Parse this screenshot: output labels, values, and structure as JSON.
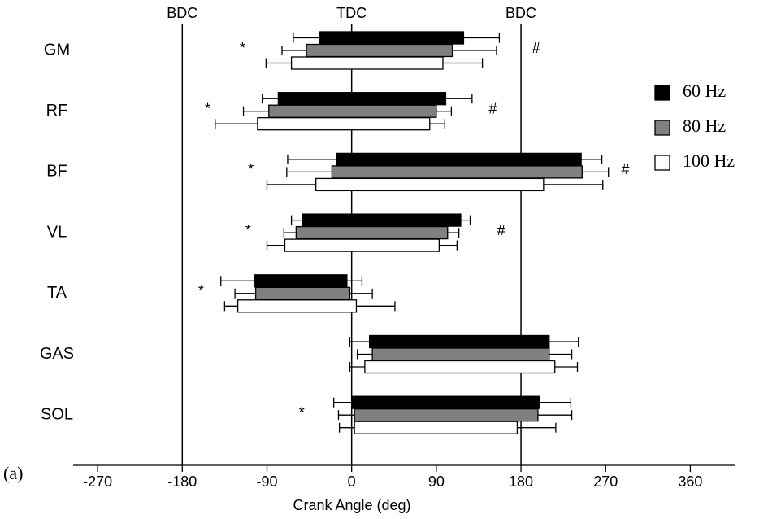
{
  "chart_data": {
    "type": "floating-bar",
    "categories": [
      "GM",
      "RF",
      "BF",
      "VL",
      "TA",
      "GAS",
      "SOL"
    ],
    "series": [
      {
        "name": "60 Hz",
        "color": "#000000",
        "onset": [
          -34,
          -78,
          -16,
          -52,
          -103,
          19,
          0
        ],
        "offset": [
          119,
          100,
          244,
          116,
          -5,
          210,
          200
        ],
        "onset_error": [
          28,
          17,
          52,
          12,
          36,
          21,
          19
        ],
        "offset_error": [
          38,
          28,
          22,
          10,
          16,
          31,
          33
        ]
      },
      {
        "name": "80 Hz",
        "color": "#808080",
        "onset": [
          -48,
          -88,
          -21,
          -59,
          -102,
          22,
          3
        ],
        "offset": [
          107,
          90,
          245,
          102,
          -2,
          210,
          198
        ],
        "onset_error": [
          26,
          27,
          48,
          13,
          22,
          16,
          17
        ],
        "offset_error": [
          47,
          16,
          28,
          12,
          24,
          24,
          36
        ]
      },
      {
        "name": "100 Hz",
        "color": "#ffffff",
        "onset": [
          -64,
          -100,
          -38,
          -71,
          -121,
          14,
          3
        ],
        "offset": [
          97,
          83,
          204,
          93,
          5,
          216,
          176
        ],
        "onset_error": [
          27,
          45,
          52,
          19,
          14,
          16,
          16
        ],
        "offset_error": [
          42,
          16,
          63,
          19,
          41,
          24,
          41
        ]
      }
    ],
    "annotations": [
      {
        "category": 0,
        "x": -116,
        "text": "*"
      },
      {
        "category": 1,
        "x": -153,
        "text": "*"
      },
      {
        "category": 2,
        "x": -107,
        "text": "*"
      },
      {
        "category": 3,
        "x": -110,
        "text": "*"
      },
      {
        "category": 4,
        "x": -160,
        "text": "*"
      },
      {
        "category": 6,
        "x": -53,
        "text": "*"
      },
      {
        "category": 0,
        "x": 196,
        "text": "#"
      },
      {
        "category": 1,
        "x": 150,
        "text": "#"
      },
      {
        "category": 2,
        "x": 291,
        "text": "#"
      },
      {
        "category": 3,
        "x": 159,
        "text": "#"
      }
    ],
    "reference_lines": [
      {
        "x": -180,
        "label": "BDC"
      },
      {
        "x": 0,
        "label": "TDC"
      },
      {
        "x": 180,
        "label": "BDC"
      }
    ],
    "panel_label": "(a)",
    "x_label": "Crank Angle (deg)",
    "xlim": [
      -296,
      408
    ],
    "xticks": [
      -270,
      -180,
      -90,
      0,
      90,
      180,
      270,
      360
    ],
    "legend": "right"
  }
}
